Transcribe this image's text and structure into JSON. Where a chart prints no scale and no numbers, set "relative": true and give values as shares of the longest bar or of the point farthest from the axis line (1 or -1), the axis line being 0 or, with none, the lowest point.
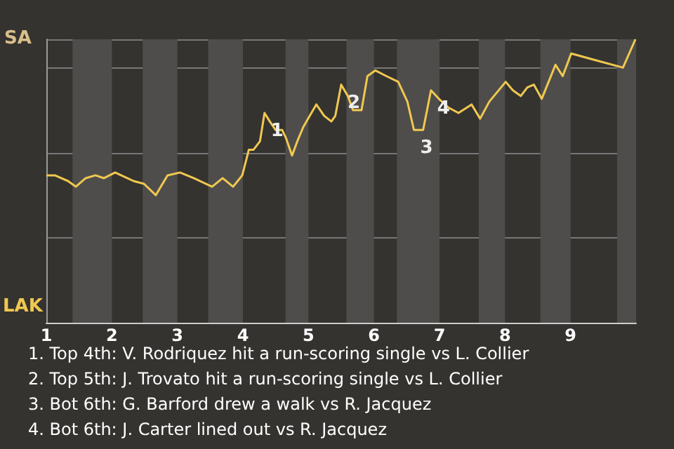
{
  "chart_data": {
    "type": "line",
    "relative": true,
    "color": "#f0c850",
    "grid": "y",
    "marker": "none",
    "x": [
      1.0,
      1.13,
      1.33,
      1.45,
      1.6,
      1.75,
      1.88,
      2.05,
      2.33,
      2.49,
      2.67,
      2.85,
      3.04,
      3.25,
      3.53,
      3.69,
      3.85,
      3.99,
      4.09,
      4.16,
      4.26,
      4.33,
      4.41,
      4.5,
      4.6,
      4.66,
      4.75,
      4.83,
      4.92,
      5.02,
      5.12,
      5.24,
      5.35,
      5.41,
      5.5,
      5.6,
      5.68,
      5.81,
      5.9,
      6.02,
      6.19,
      6.37,
      6.51,
      6.61,
      6.75,
      6.87,
      6.99,
      7.13,
      7.29,
      7.49,
      7.62,
      7.76,
      8.01,
      8.12,
      8.24,
      8.34,
      8.44,
      8.56,
      8.77,
      8.88,
      9.01,
      9.32,
      9.8,
      9.99
    ],
    "values": [
      0.52,
      0.52,
      0.5,
      0.48,
      0.51,
      0.52,
      0.51,
      0.53,
      0.5,
      0.49,
      0.45,
      0.52,
      0.53,
      0.51,
      0.48,
      0.51,
      0.48,
      0.52,
      0.61,
      0.61,
      0.64,
      0.74,
      0.71,
      0.68,
      0.68,
      0.65,
      0.59,
      0.64,
      0.69,
      0.73,
      0.77,
      0.73,
      0.71,
      0.73,
      0.84,
      0.8,
      0.75,
      0.75,
      0.87,
      0.89,
      0.87,
      0.85,
      0.78,
      0.68,
      0.68,
      0.82,
      0.79,
      0.76,
      0.74,
      0.77,
      0.72,
      0.78,
      0.85,
      0.82,
      0.8,
      0.83,
      0.84,
      0.79,
      0.91,
      0.87,
      0.95,
      0.93,
      0.9,
      1.0
    ],
    "xlim": [
      1,
      10
    ],
    "xticks": [
      1,
      2,
      3,
      4,
      5,
      6,
      7,
      8,
      9
    ],
    "bands": [
      {
        "axis": "x",
        "from": 1.4,
        "to": 2.0,
        "color": "#4e4d4b"
      },
      {
        "axis": "x",
        "from": 2.47,
        "to": 3.0,
        "color": "#4e4d4b"
      },
      {
        "axis": "x",
        "from": 3.47,
        "to": 4.0,
        "color": "#4e4d4b"
      },
      {
        "axis": "x",
        "from": 4.65,
        "to": 5.0,
        "color": "#4e4d4b"
      },
      {
        "axis": "x",
        "from": 5.58,
        "to": 6.0,
        "color": "#4e4d4b"
      },
      {
        "axis": "x",
        "from": 6.35,
        "to": 7.0,
        "color": "#4e4d4b"
      },
      {
        "axis": "x",
        "from": 7.6,
        "to": 8.0,
        "color": "#4e4d4b"
      },
      {
        "axis": "x",
        "from": 8.54,
        "to": 9.0,
        "color": "#4e4d4b"
      },
      {
        "axis": "x",
        "from": 9.71,
        "to": 10,
        "color": "#4e4d4b"
      }
    ],
    "annotations": [
      "SA",
      "LAK",
      "1. Top 4th: V. Rodriquez hit a run-scoring single vs L. Collier",
      "2. Top 5th: J. Trovato hit a run-scoring single vs L. Collier",
      "3. Bot 6th: G. Barford drew a walk vs R. Jacquez",
      "4. Bot 6th: J. Carter lined out vs R. Jacquez",
      {
        "text": "1",
        "x": 4.33,
        "y": 0.74
      },
      {
        "text": "2",
        "x": 5.5,
        "y": 0.84
      },
      {
        "text": "3",
        "x": 6.61,
        "y": 0.68
      },
      {
        "text": "4",
        "x": 6.87,
        "y": 0.82
      }
    ]
  }
}
